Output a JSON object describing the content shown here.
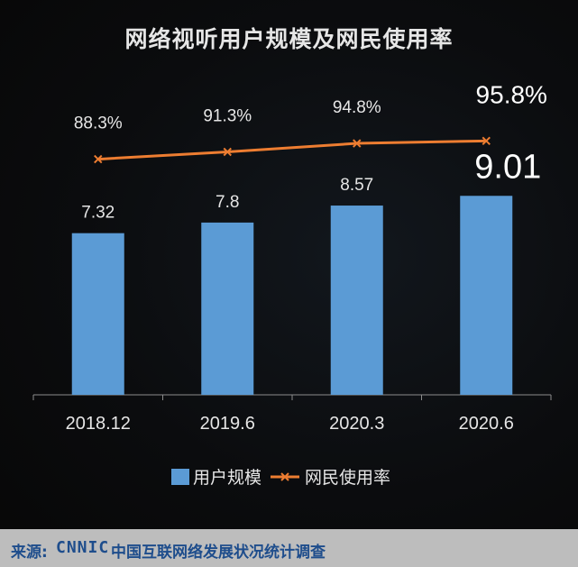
{
  "chart_data": {
    "type": "bar",
    "title": "网络视听用户规模及网民使用率",
    "categories": [
      "2018.12",
      "2019.6",
      "2020.3",
      "2020.6"
    ],
    "series": [
      {
        "name": "用户规模",
        "type": "bar",
        "values": [
          7.32,
          7.8,
          8.57,
          9.01
        ],
        "labels": [
          "7.32",
          "7.8",
          "8.57",
          "9.01"
        ],
        "color": "#5b9bd5"
      },
      {
        "name": "网民使用率",
        "type": "line",
        "values": [
          88.3,
          91.3,
          94.8,
          95.8
        ],
        "labels": [
          "88.3%",
          "91.3%",
          "94.8%",
          "95.8%"
        ],
        "color": "#ed7d31"
      }
    ],
    "ylim": [
      0,
      9.5
    ],
    "y2lim": [
      75,
      100
    ],
    "legend_position": "bottom",
    "grid": false
  },
  "footer": {
    "source_label": "来源:",
    "source_org": "CNNIC",
    "source_text": "中国互联网络发展状况统计调查"
  },
  "colors": {
    "background": "#090909",
    "bar": "#5b9bd5",
    "line": "#ed7d31",
    "text": "#e6e6e6",
    "footer_bg": "#bdbdbd",
    "footer_text": "#1e4d8c"
  }
}
